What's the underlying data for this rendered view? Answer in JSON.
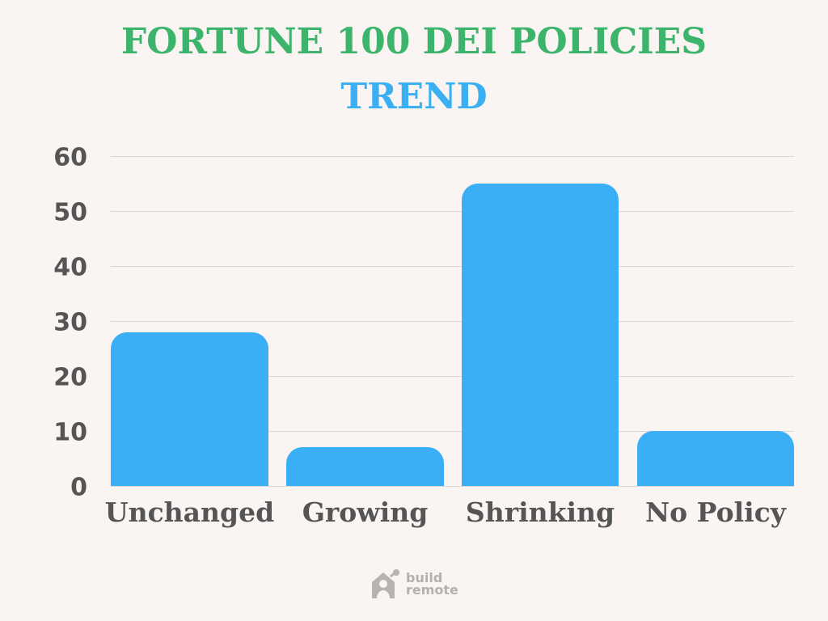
{
  "header": {
    "title_line1": "FORTUNE 100 DEI POLICIES",
    "title_line2": "TREND",
    "title_line1_color": "#3cb46c",
    "title_line2_color": "#3aaff2"
  },
  "axis": {
    "y_ticks": [
      "60",
      "50",
      "40",
      "30",
      "20",
      "10",
      "0"
    ]
  },
  "bars": [
    {
      "label": "Unchanged",
      "value": 28
    },
    {
      "label": "Growing",
      "value": 7
    },
    {
      "label": "Shrinking",
      "value": 55
    },
    {
      "label": "No Policy",
      "value": 10
    }
  ],
  "footer": {
    "logo_line1": "build",
    "logo_line2": "remote"
  },
  "chart_data": {
    "type": "bar",
    "title": "FORTUNE 100 DEI POLICIES TREND",
    "categories": [
      "Unchanged",
      "Growing",
      "Shrinking",
      "No Policy"
    ],
    "values": [
      28,
      7,
      55,
      10
    ],
    "xlabel": "",
    "ylabel": "",
    "ylim": [
      0,
      60
    ],
    "yticks": [
      0,
      10,
      20,
      30,
      40,
      50,
      60
    ],
    "grid": true,
    "legend": null,
    "bar_color": "#3aaff5"
  }
}
